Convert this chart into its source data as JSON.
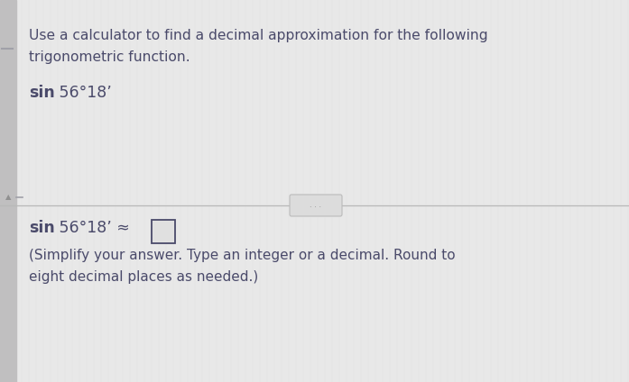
{
  "bg_color": "#e8e8e8",
  "panel_color": "#e0e0e0",
  "text_color": "#4a4a6a",
  "grid_color": "#d0d0d0",
  "line1": "Use a calculator to find a decimal approximation for the following",
  "line2": "trigonometric function.",
  "sin_bold": "sin",
  "question_rest": " 56°18’",
  "answer_sin": "sin",
  "answer_rest": " 56°18’ ≈ ",
  "note_line1": "(Simplify your answer. Type an integer or a decimal. Round to",
  "note_line2": "eight decimal places as needed.)",
  "left_bar_color": "#c0bfc0",
  "divider_color": "#b8b8b8",
  "button_color": "#dcdcdc",
  "button_border": "#bbbbbb"
}
